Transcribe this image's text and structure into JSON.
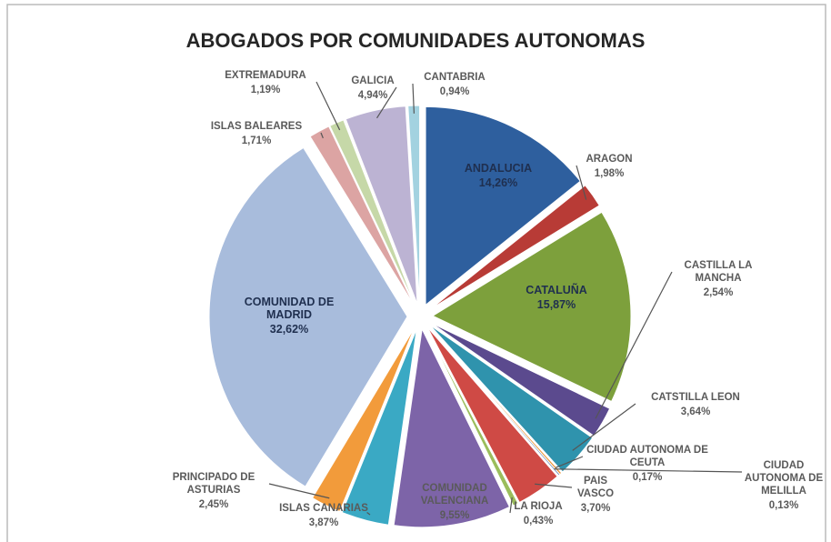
{
  "chart_data": {
    "type": "pie",
    "title": "ABOGADOS POR COMUNIDADES AUTONOMAS",
    "categories": [
      "ANDALUCIA",
      "ARAGON",
      "CATALUÑA",
      "CASTILLA LA MANCHA",
      "CATSTILLA LEON",
      "CIUDAD AUTONOMA DE CEUTA",
      "CIUDAD AUTONOMA DE MELILLA",
      "PAIS VASCO",
      "LA RIOJA",
      "COMUNIDAD VALENCIANA",
      "ISLAS CANARIAS",
      "PRINCIPADO DE ASTURIAS",
      "COMUNIDAD DE MADRID",
      "ISLAS BALEARES",
      "EXTREMADURA",
      "GALICIA",
      "CANTABRIA"
    ],
    "values": [
      14.26,
      1.98,
      15.87,
      2.54,
      3.64,
      0.17,
      0.13,
      3.7,
      0.43,
      9.55,
      3.87,
      2.45,
      32.62,
      1.71,
      1.19,
      4.94,
      0.94
    ],
    "value_labels": [
      "14,26%",
      "1,98%",
      "15,87%",
      "2,54%",
      "3,64%",
      "0,17%",
      "0,13%",
      "3,70%",
      "0,43%",
      "9,55%",
      "3,87%",
      "2,45%",
      "32,62%",
      "1,71%",
      "1,19%",
      "4,94%",
      "0,94%"
    ],
    "colors": [
      "#2e5f9e",
      "#b83b36",
      "#7da03c",
      "#5b4a8e",
      "#2f93ad",
      "#e9902f",
      "#5f7fb5",
      "#cf4a45",
      "#9bbd5c",
      "#7d64a8",
      "#3aa9c4",
      "#f29b3b",
      "#a8bcdc",
      "#dca4a3",
      "#c6d8a8",
      "#bcb3d3",
      "#a3d2e0"
    ]
  }
}
